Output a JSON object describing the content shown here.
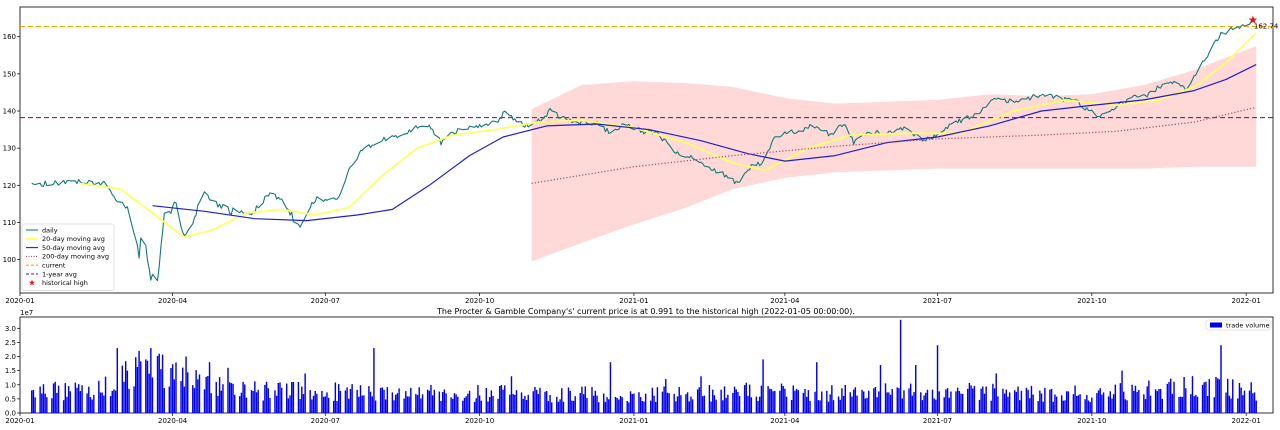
{
  "chart_data": [
    {
      "type": "line",
      "title": "",
      "xlabel": "",
      "ylabel": "",
      "x_range": [
        "2020-01-01",
        "2022-01-17"
      ],
      "ylim": [
        91,
        168
      ],
      "grid": false,
      "legend_position": "lower-left",
      "x_ticks": [
        {
          "date": "2020-01-01",
          "label": "2020-01"
        },
        {
          "date": "2020-04-01",
          "label": "2020-04"
        },
        {
          "date": "2020-07-01",
          "label": "2020-07"
        },
        {
          "date": "2020-10-01",
          "label": "2020-10"
        },
        {
          "date": "2021-01-01",
          "label": "2021-01"
        },
        {
          "date": "2021-04-01",
          "label": "2021-04"
        },
        {
          "date": "2021-07-01",
          "label": "2021-07"
        },
        {
          "date": "2021-10-01",
          "label": "2021-10"
        },
        {
          "date": "2022-01-01",
          "label": "2022-01"
        }
      ],
      "y_ticks": [
        100,
        110,
        120,
        130,
        140,
        150,
        160
      ],
      "series": [
        {
          "name": "daily",
          "color": "#147878",
          "style": "solid",
          "points": [
            [
              "2020-01-08",
              120.2
            ],
            [
              "2020-01-20",
              120.6
            ],
            [
              "2020-02-05",
              121.2
            ],
            [
              "2020-02-20",
              120.5
            ],
            [
              "2020-02-27",
              116.0
            ],
            [
              "2020-03-05",
              113.5
            ],
            [
              "2020-03-10",
              106.0
            ],
            [
              "2020-03-12",
              99.5
            ],
            [
              "2020-03-14",
              110.0
            ],
            [
              "2020-03-16",
              103.0
            ],
            [
              "2020-03-19",
              95.5
            ],
            [
              "2020-03-23",
              93.5
            ],
            [
              "2020-03-27",
              111.5
            ],
            [
              "2020-04-03",
              115.0
            ],
            [
              "2020-04-08",
              105.5
            ],
            [
              "2020-04-15",
              112.5
            ],
            [
              "2020-04-20",
              118.0
            ],
            [
              "2020-04-29",
              114.0
            ],
            [
              "2020-05-12",
              112.5
            ],
            [
              "2020-05-22",
              113.5
            ],
            [
              "2020-05-27",
              117.5
            ],
            [
              "2020-06-05",
              116.5
            ],
            [
              "2020-06-15",
              108.5
            ],
            [
              "2020-06-26",
              116.5
            ],
            [
              "2020-07-08",
              116.0
            ],
            [
              "2020-07-14",
              123.0
            ],
            [
              "2020-07-22",
              129.0
            ],
            [
              "2020-08-05",
              132.5
            ],
            [
              "2020-08-18",
              134.0
            ],
            [
              "2020-08-24",
              136.0
            ],
            [
              "2020-09-02",
              135.5
            ],
            [
              "2020-09-08",
              131.5
            ],
            [
              "2020-09-18",
              135.0
            ],
            [
              "2020-09-28",
              135.5
            ],
            [
              "2020-10-12",
              137.5
            ],
            [
              "2020-10-16",
              139.5
            ],
            [
              "2020-10-22",
              137.5
            ],
            [
              "2020-10-28",
              136.0
            ],
            [
              "2020-11-05",
              137.5
            ],
            [
              "2020-11-12",
              140.0
            ],
            [
              "2020-11-20",
              138.0
            ],
            [
              "2020-12-01",
              137.0
            ],
            [
              "2020-12-10",
              136.5
            ],
            [
              "2020-12-17",
              134.5
            ],
            [
              "2020-12-28",
              136.5
            ],
            [
              "2021-01-06",
              134.5
            ],
            [
              "2021-01-15",
              134.0
            ],
            [
              "2021-01-26",
              128.5
            ],
            [
              "2021-02-05",
              127.5
            ],
            [
              "2021-02-15",
              125.0
            ],
            [
              "2021-02-25",
              122.5
            ],
            [
              "2021-03-04",
              120.5
            ],
            [
              "2021-03-10",
              124.5
            ],
            [
              "2021-03-18",
              126.0
            ],
            [
              "2021-03-26",
              133.0
            ],
            [
              "2021-04-06",
              134.5
            ],
            [
              "2021-04-19",
              136.0
            ],
            [
              "2021-04-28",
              133.5
            ],
            [
              "2021-05-06",
              136.5
            ],
            [
              "2021-05-12",
              131.5
            ],
            [
              "2021-05-20",
              134.0
            ],
            [
              "2021-06-03",
              134.5
            ],
            [
              "2021-06-12",
              135.5
            ],
            [
              "2021-06-22",
              132.0
            ],
            [
              "2021-07-02",
              134.0
            ],
            [
              "2021-07-09",
              136.5
            ],
            [
              "2021-07-22",
              138.5
            ],
            [
              "2021-08-04",
              143.0
            ],
            [
              "2021-08-18",
              142.5
            ],
            [
              "2021-08-25",
              143.5
            ],
            [
              "2021-09-03",
              144.5
            ],
            [
              "2021-09-15",
              143.0
            ],
            [
              "2021-09-24",
              142.0
            ],
            [
              "2021-10-04",
              138.5
            ],
            [
              "2021-10-12",
              140.0
            ],
            [
              "2021-10-22",
              143.0
            ],
            [
              "2021-11-03",
              144.5
            ],
            [
              "2021-11-12",
              147.0
            ],
            [
              "2021-11-22",
              147.5
            ],
            [
              "2021-11-26",
              145.5
            ],
            [
              "2021-12-03",
              151.0
            ],
            [
              "2021-12-10",
              156.0
            ],
            [
              "2021-12-17",
              160.5
            ],
            [
              "2021-12-23",
              162.0
            ],
            [
              "2022-01-01",
              163.0
            ],
            [
              "2022-01-05",
              164.5
            ]
          ]
        },
        {
          "name": "20-day moving avg",
          "color": "#ffff66",
          "style": "solid",
          "points": [
            [
              "2020-02-05",
              120.5
            ],
            [
              "2020-03-01",
              119.0
            ],
            [
              "2020-03-20",
              112.5
            ],
            [
              "2020-04-08",
              106.0
            ],
            [
              "2020-04-25",
              108.0
            ],
            [
              "2020-05-15",
              112.5
            ],
            [
              "2020-06-05",
              113.5
            ],
            [
              "2020-06-25",
              112.0
            ],
            [
              "2020-07-15",
              114.0
            ],
            [
              "2020-08-05",
              123.0
            ],
            [
              "2020-08-25",
              130.0
            ],
            [
              "2020-09-15",
              133.5
            ],
            [
              "2020-10-10",
              135.0
            ],
            [
              "2020-11-05",
              137.0
            ],
            [
              "2020-12-01",
              137.5
            ],
            [
              "2021-01-01",
              135.5
            ],
            [
              "2021-02-01",
              131.5
            ],
            [
              "2021-03-01",
              126.0
            ],
            [
              "2021-03-20",
              124.0
            ],
            [
              "2021-04-15",
              130.0
            ],
            [
              "2021-05-10",
              133.5
            ],
            [
              "2021-06-15",
              134.0
            ],
            [
              "2021-07-15",
              134.0
            ],
            [
              "2021-08-15",
              140.0
            ],
            [
              "2021-09-15",
              143.0
            ],
            [
              "2021-10-15",
              141.5
            ],
            [
              "2021-11-10",
              143.0
            ],
            [
              "2021-12-01",
              146.5
            ],
            [
              "2021-12-20",
              153.0
            ],
            [
              "2022-01-07",
              161.0
            ]
          ]
        },
        {
          "name": "50-day moving avg",
          "color": "#2020c8",
          "style": "solid",
          "points": [
            [
              "2020-03-20",
              114.5
            ],
            [
              "2020-04-20",
              113.0
            ],
            [
              "2020-05-20",
              111.0
            ],
            [
              "2020-06-20",
              110.5
            ],
            [
              "2020-07-20",
              112.0
            ],
            [
              "2020-08-10",
              113.5
            ],
            [
              "2020-09-01",
              120.0
            ],
            [
              "2020-09-25",
              128.0
            ],
            [
              "2020-10-15",
              133.0
            ],
            [
              "2020-11-10",
              136.0
            ],
            [
              "2020-12-10",
              136.5
            ],
            [
              "2021-01-10",
              135.0
            ],
            [
              "2021-02-10",
              132.0
            ],
            [
              "2021-03-10",
              128.5
            ],
            [
              "2021-04-01",
              126.5
            ],
            [
              "2021-05-01",
              128.0
            ],
            [
              "2021-06-01",
              131.5
            ],
            [
              "2021-07-01",
              133.0
            ],
            [
              "2021-08-01",
              136.0
            ],
            [
              "2021-09-01",
              140.0
            ],
            [
              "2021-10-01",
              141.5
            ],
            [
              "2021-11-01",
              143.0
            ],
            [
              "2021-12-01",
              145.5
            ],
            [
              "2021-12-20",
              148.5
            ],
            [
              "2022-01-07",
              152.5
            ]
          ]
        },
        {
          "name": "200-day moving avg",
          "color": "#a0505a",
          "style": "dotted",
          "points": [
            [
              "2020-11-01",
              120.5
            ],
            [
              "2021-01-01",
              125.0
            ],
            [
              "2021-03-01",
              128.0
            ],
            [
              "2021-05-01",
              130.5
            ],
            [
              "2021-07-01",
              132.5
            ],
            [
              "2021-09-01",
              133.5
            ],
            [
              "2021-10-15",
              134.5
            ],
            [
              "2021-12-01",
              137.0
            ],
            [
              "2022-01-07",
              141.0
            ]
          ]
        },
        {
          "name": "current",
          "color": "#ffa500",
          "style": "dashed",
          "y": 162.74
        },
        {
          "name": "1-year avg",
          "color": "#800080",
          "style": "dashed",
          "y": 138.2
        },
        {
          "name": "historical high",
          "color": "#e01818",
          "marker": "star",
          "x": "2022-01-05",
          "y": 164.5
        }
      ],
      "band": {
        "color": "#ffd8d8",
        "upper": [
          [
            "2020-11-01",
            140.5
          ],
          [
            "2020-12-01",
            147.0
          ],
          [
            "2021-01-01",
            148.0
          ],
          [
            "2021-02-01",
            147.5
          ],
          [
            "2021-03-01",
            146.5
          ],
          [
            "2021-04-01",
            143.5
          ],
          [
            "2021-05-01",
            142.0
          ],
          [
            "2021-06-01",
            142.5
          ],
          [
            "2021-07-01",
            143.0
          ],
          [
            "2021-08-01",
            144.5
          ],
          [
            "2021-09-01",
            144.0
          ],
          [
            "2021-10-01",
            144.5
          ],
          [
            "2021-11-01",
            147.0
          ],
          [
            "2021-12-01",
            151.0
          ],
          [
            "2022-01-07",
            157.5
          ]
        ],
        "lower": [
          [
            "2020-11-01",
            99.5
          ],
          [
            "2020-12-01",
            104.5
          ],
          [
            "2021-01-01",
            109.5
          ],
          [
            "2021-02-01",
            114.0
          ],
          [
            "2021-03-01",
            119.0
          ],
          [
            "2021-04-01",
            122.0
          ],
          [
            "2021-05-01",
            123.5
          ],
          [
            "2021-06-01",
            124.0
          ],
          [
            "2021-07-01",
            124.5
          ],
          [
            "2021-08-01",
            124.5
          ],
          [
            "2021-09-01",
            124.5
          ],
          [
            "2021-10-01",
            124.5
          ],
          [
            "2021-11-01",
            124.5
          ],
          [
            "2021-12-01",
            125.0
          ],
          [
            "2022-01-07",
            125.0
          ]
        ]
      },
      "annotations": [
        {
          "text": "162.74",
          "x": "2022-01-05",
          "y": 162.74
        }
      ]
    },
    {
      "type": "bar",
      "title": "The Procter & Gamble Company's' current price is at 0.991 to the historical high (2022-01-05 00:00:00).",
      "xlabel": "",
      "ylabel": "",
      "x_range": [
        "2020-01-01",
        "2022-01-17"
      ],
      "ylim": [
        0,
        3.4
      ],
      "offset_label": "1e7",
      "y_ticks": [
        0.0,
        0.5,
        1.0,
        1.5,
        2.0,
        2.5,
        3.0
      ],
      "legend_position": "top-right",
      "series": [
        {
          "name": "trade volume",
          "color": "#0000ee"
        }
      ],
      "volume_profile": [
        [
          "2020-01-08",
          0.75
        ],
        [
          "2020-02-20",
          0.85
        ],
        [
          "2020-03-01",
          1.3
        ],
        [
          "2020-03-20",
          1.6
        ],
        [
          "2020-04-10",
          1.1
        ],
        [
          "2020-05-10",
          0.8
        ],
        [
          "2020-07-01",
          0.75
        ],
        [
          "2020-10-01",
          0.7
        ],
        [
          "2021-01-01",
          0.65
        ],
        [
          "2021-03-01",
          0.75
        ],
        [
          "2021-05-01",
          0.7
        ],
        [
          "2021-07-01",
          0.75
        ],
        [
          "2021-10-01",
          0.7
        ],
        [
          "2021-12-01",
          0.95
        ],
        [
          "2022-01-07",
          0.8
        ]
      ],
      "volume_spikes": [
        [
          "2020-02-28",
          2.3
        ],
        [
          "2020-03-05",
          1.5
        ],
        [
          "2020-03-12",
          2.2
        ],
        [
          "2020-03-16",
          1.9
        ],
        [
          "2020-03-19",
          2.3
        ],
        [
          "2020-03-24",
          2.1
        ],
        [
          "2020-04-09",
          2.0
        ],
        [
          "2020-04-23",
          1.8
        ],
        [
          "2020-05-04",
          1.6
        ],
        [
          "2020-06-19",
          1.4
        ],
        [
          "2020-07-30",
          2.3
        ],
        [
          "2020-10-20",
          1.3
        ],
        [
          "2020-12-18",
          1.8
        ],
        [
          "2021-01-20",
          1.2
        ],
        [
          "2021-02-10",
          1.3
        ],
        [
          "2021-03-19",
          1.9
        ],
        [
          "2021-04-20",
          1.8
        ],
        [
          "2021-05-28",
          1.7
        ],
        [
          "2021-06-09",
          3.3
        ],
        [
          "2021-06-18",
          1.7
        ],
        [
          "2021-07-01",
          2.4
        ],
        [
          "2021-08-05",
          1.4
        ],
        [
          "2021-10-19",
          1.5
        ],
        [
          "2021-12-10",
          1.2
        ],
        [
          "2021-12-17",
          2.4
        ]
      ]
    }
  ]
}
